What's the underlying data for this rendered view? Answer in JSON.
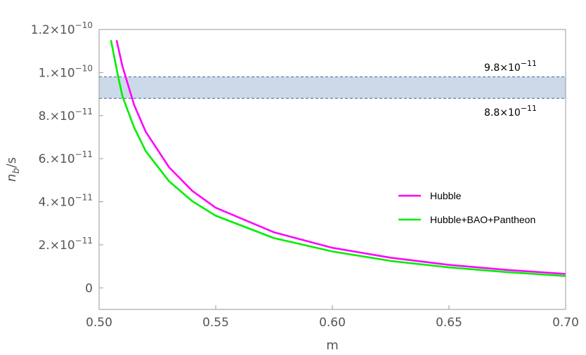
{
  "chart_data": {
    "type": "line",
    "xlabel": "m",
    "ylabel": {
      "base": "n",
      "sub": "b",
      "rest": "/s"
    },
    "xlim": [
      0.5,
      0.7
    ],
    "ylim": [
      -1e-11,
      1.2e-10
    ],
    "x_ticks": [
      {
        "value": 0.5,
        "label": "0.50"
      },
      {
        "value": 0.55,
        "label": "0.55"
      },
      {
        "value": 0.6,
        "label": "0.60"
      },
      {
        "value": 0.65,
        "label": "0.65"
      },
      {
        "value": 0.7,
        "label": "0.70"
      }
    ],
    "y_ticks": [
      {
        "value": 0,
        "mant": "0",
        "exp": ""
      },
      {
        "value": 2e-11,
        "mant": "2.×10",
        "exp": "−11"
      },
      {
        "value": 4e-11,
        "mant": "4.×10",
        "exp": "−11"
      },
      {
        "value": 6e-11,
        "mant": "6.×10",
        "exp": "−11"
      },
      {
        "value": 8e-11,
        "mant": "8.×10",
        "exp": "−11"
      },
      {
        "value": 1e-10,
        "mant": "1.×10",
        "exp": "−10"
      },
      {
        "value": 1.2e-10,
        "mant": "1.2×10",
        "exp": "−10"
      }
    ],
    "band": {
      "lower": 8.8e-11,
      "upper": 9.8e-11,
      "fill": "#ccd9e8",
      "line": "#5d7fad",
      "upper_label": {
        "mant": "9.8×10",
        "exp": "−11"
      },
      "lower_label": {
        "mant": "8.8×10",
        "exp": "−11"
      }
    },
    "series": [
      {
        "name": "Hubble",
        "color": "#ff00ff",
        "x": [
          0.5075,
          0.51,
          0.515,
          0.52,
          0.53,
          0.54,
          0.55,
          0.575,
          0.6,
          0.625,
          0.65,
          0.675,
          0.7
        ],
        "y": [
          1.15e-10,
          1.03e-10,
          8.5e-11,
          7.25e-11,
          5.6e-11,
          4.5e-11,
          3.72e-11,
          2.58e-11,
          1.86e-11,
          1.4e-11,
          1.07e-11,
          8.3e-12,
          6.5e-12
        ]
      },
      {
        "name": "Hubble+BAO+Pantheon",
        "color": "#00ee00",
        "x": [
          0.5051,
          0.508,
          0.51,
          0.515,
          0.52,
          0.53,
          0.54,
          0.55,
          0.575,
          0.6,
          0.625,
          0.65,
          0.675,
          0.7
        ],
        "y": [
          1.15e-10,
          9.9e-11,
          8.9e-11,
          7.45e-11,
          6.35e-11,
          4.95e-11,
          4.02e-11,
          3.35e-11,
          2.31e-11,
          1.69e-11,
          1.25e-11,
          9.5e-12,
          7.3e-12,
          5.5e-12
        ]
      }
    ],
    "legend": "right"
  }
}
